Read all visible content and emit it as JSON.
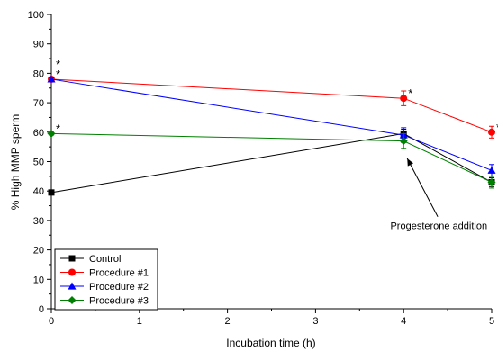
{
  "chart_data": {
    "type": "line",
    "title": "",
    "xlabel": "Incubation time (h)",
    "ylabel": "% High MMP sperm",
    "xlim": [
      0,
      5
    ],
    "ylim": [
      0,
      100
    ],
    "x_ticks": [
      "0",
      "1",
      "2",
      "3",
      "4",
      "5"
    ],
    "y_ticks": [
      "0",
      "10",
      "20",
      "30",
      "40",
      "50",
      "60",
      "70",
      "80",
      "90",
      "100"
    ],
    "grid": false,
    "legend_position": "bottom-left",
    "series": [
      {
        "name": "Control",
        "color": "#000000",
        "marker": "square",
        "x": [
          0,
          4,
          5
        ],
        "y": [
          39.5,
          59.5,
          43
        ],
        "err": [
          0.8,
          1.5,
          1.5
        ],
        "sig": [
          "",
          "",
          ""
        ]
      },
      {
        "name": "Procedure #1",
        "color": "#ff0000",
        "marker": "circle",
        "x": [
          0,
          4,
          5
        ],
        "y": [
          78,
          71.5,
          60
        ],
        "err": [
          0.5,
          2.5,
          2
        ],
        "sig": [
          "*",
          "*",
          "*"
        ]
      },
      {
        "name": "Procedure #2",
        "color": "#0000ff",
        "marker": "triangle",
        "x": [
          0,
          4,
          5
        ],
        "y": [
          78,
          59,
          47
        ],
        "err": [
          0.5,
          2.5,
          2
        ],
        "sig": [
          "*",
          "",
          ""
        ]
      },
      {
        "name": "Procedure #3",
        "color": "#008000",
        "marker": "diamond",
        "x": [
          0,
          4,
          5
        ],
        "y": [
          59.5,
          57,
          43
        ],
        "err": [
          0.5,
          2.5,
          2
        ],
        "sig": [
          "*",
          "",
          ""
        ]
      }
    ],
    "annotations": [
      {
        "text": "Progesterone addition",
        "arrow_to": [
          4,
          52
        ],
        "text_at": [
          4.95,
          27
        ]
      }
    ]
  }
}
